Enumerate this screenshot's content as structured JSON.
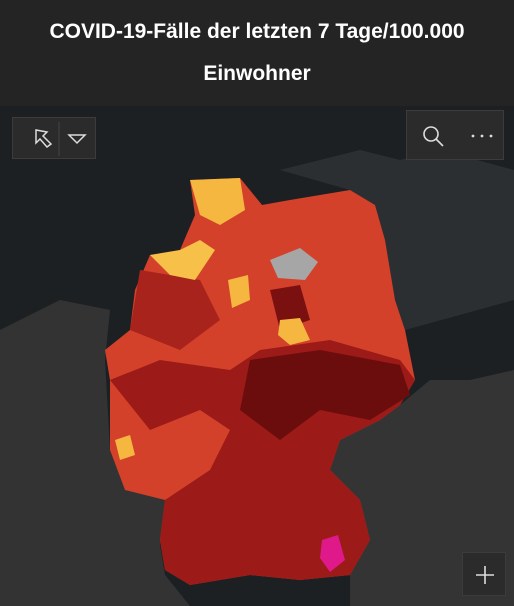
{
  "title": "COVID-19-Fälle der letzten 7 Tage/100.000 Einwohner"
}
